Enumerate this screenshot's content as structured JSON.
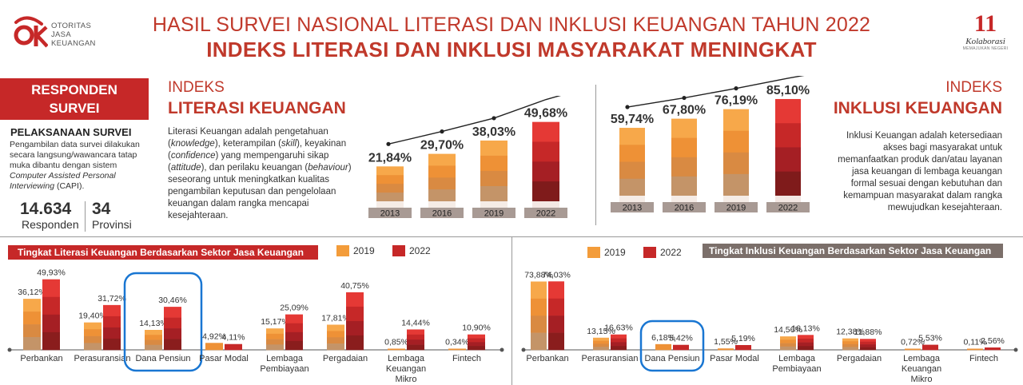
{
  "header": {
    "logo": {
      "mark": "OJK",
      "lines": [
        "OTORITAS",
        "JASA",
        "KEUANGAN"
      ]
    },
    "title": "HASIL SURVEI NASIONAL LITERASI DAN INKLUSI KEUANGAN TAHUN 2022",
    "subtitle": "INDEKS LITERASI DAN INKLUSI MASYARAKAT MENINGKAT",
    "anniversary": {
      "number": "11",
      "word": "Kolaborasi",
      "tagline": "MEMAJUKAN NEGERI"
    }
  },
  "responden": {
    "box_line1": "RESPONDEN",
    "box_line2": "SURVEI",
    "heading": "PELAKSANAAN SURVEI",
    "text1": "Pengambilan data survei dilakukan secara langsung/wawancara tatap muka dibantu dengan sistem",
    "text_italic": "Computer Assisted Personal Interviewing",
    "text2": " (CAPI).",
    "count_value": "14.634",
    "count_label": "Responden",
    "prov_value": "34",
    "prov_label": "Provinsi"
  },
  "literasi": {
    "label_light": "INDEKS",
    "label_bold": "LITERASI KEUANGAN",
    "desc": [
      {
        "t": "Literasi Keuangan adalah pengetahuan ("
      },
      {
        "t": "knowledge",
        "i": true
      },
      {
        "t": "), keterampilan ("
      },
      {
        "t": "skill",
        "i": true
      },
      {
        "t": "), keyakinan ("
      },
      {
        "t": "confidence",
        "i": true
      },
      {
        "t": ") yang mempengaruhi sikap ("
      },
      {
        "t": "attitude",
        "i": true
      },
      {
        "t": "), dan perilaku keuangan ("
      },
      {
        "t": "behaviour",
        "i": true
      },
      {
        "t": ") seseorang untuk meningkatkan kualitas pengambilan keputusan dan pengelolaan keuangan dalam rangka mencapai kesejahteraan."
      }
    ]
  },
  "inklusi": {
    "label_light": "INDEKS",
    "label_bold": "INKLUSI KEUANGAN",
    "desc": "Inklusi Keuangan adalah ketersediaan akses bagi masyarakat untuk memanfaatkan produk dan/atau layanan jasa keuangan di lembaga keuangan formal sesuai dengan kebutuhan dan kemampuan masyarakat dalam rangka mewujudkan kesejahteraan."
  },
  "legend": {
    "y2019": "2019",
    "y2022": "2022"
  },
  "sector_titles": {
    "literasi": "Tingkat Literasi Keuangan Berdasarkan Sektor Jasa Keuangan",
    "inklusi": "Tingkat Inklusi Keuangan Berdasarkan Sektor Jasa Keuangan"
  },
  "colors": {
    "red": "#c62828",
    "orange": "#f39c3a",
    "grey": "#7b6f6a",
    "year_box": "#a89a94"
  },
  "chart_data": [
    {
      "type": "bar",
      "title": "INDEKS LITERASI KEUANGAN",
      "categories": [
        "2013",
        "2016",
        "2019",
        "2022"
      ],
      "values": [
        21.84,
        29.7,
        38.03,
        49.68
      ],
      "labels": [
        "21,84%",
        "29,70%",
        "38,03%",
        "49,68%"
      ],
      "ylim": [
        0,
        55
      ],
      "trend_line": true
    },
    {
      "type": "bar",
      "title": "INDEKS INKLUSI KEUANGAN",
      "categories": [
        "2013",
        "2016",
        "2019",
        "2022"
      ],
      "values": [
        59.74,
        67.8,
        76.19,
        85.1
      ],
      "labels": [
        "59,74%",
        "67,80%",
        "76,19%",
        "85,10%"
      ],
      "ylim": [
        0,
        90
      ],
      "trend_line": true
    },
    {
      "type": "bar",
      "title": "Tingkat Literasi Keuangan Berdasarkan Sektor Jasa Keuangan",
      "categories": [
        "Perbankan",
        "Perasuransian",
        "Dana Pensiun",
        "Pasar Modal",
        "Lembaga Pembiayaan",
        "Pergadaian",
        "Lembaga Keuangan Mikro",
        "Fintech"
      ],
      "category_lines": [
        [
          "Perbankan"
        ],
        [
          "Perasuransian"
        ],
        [
          "Dana Pensiun"
        ],
        [
          "Pasar Modal"
        ],
        [
          "Lembaga",
          "Pembiayaan"
        ],
        [
          "Pergadaian"
        ],
        [
          "Lembaga",
          "Keuangan",
          "Mikro"
        ],
        [
          "Fintech"
        ]
      ],
      "series": [
        {
          "name": "2019",
          "values": [
            36.12,
            19.4,
            14.13,
            4.92,
            15.17,
            17.81,
            0.85,
            0.34
          ],
          "labels": [
            "36,12%",
            "19,40%",
            "14,13%",
            "4,92%",
            "15,17%",
            "17,81%",
            "0,85%",
            "0,34%"
          ]
        },
        {
          "name": "2022",
          "values": [
            49.93,
            31.72,
            30.46,
            4.11,
            25.09,
            40.75,
            14.44,
            10.9
          ],
          "labels": [
            "49,93%",
            "31,72%",
            "30,46%",
            "4,11%",
            "25,09%",
            "40,75%",
            "14,44%",
            "10,90%"
          ]
        }
      ],
      "ylim": [
        0,
        52
      ],
      "highlight": "Dana Pensiun"
    },
    {
      "type": "bar",
      "title": "Tingkat Inklusi Keuangan Berdasarkan Sektor Jasa Keuangan",
      "categories": [
        "Perbankan",
        "Perasuransian",
        "Dana Pensiun",
        "Pasar Modal",
        "Lembaga Pembiayaan",
        "Pergadaian",
        "Lembaga Keuangan Mikro",
        "Fintech"
      ],
      "category_lines": [
        [
          "Perbankan"
        ],
        [
          "Perasuransian"
        ],
        [
          "Dana Pensiun"
        ],
        [
          "Pasar Modal"
        ],
        [
          "Lembaga",
          "Pembiayaan"
        ],
        [
          "Pergadaian"
        ],
        [
          "Lembaga",
          "Keuangan",
          "Mikro"
        ],
        [
          "Fintech"
        ]
      ],
      "series": [
        {
          "name": "2019",
          "values": [
            73.88,
            13.15,
            6.18,
            1.55,
            14.56,
            12.38,
            0.72,
            0.11
          ],
          "labels": [
            "73,88%",
            "13,15%",
            "6,18%",
            "1,55%",
            "14,56%",
            "12,38%",
            "0,72%",
            "0,11%"
          ]
        },
        {
          "name": "2022",
          "values": [
            74.03,
            16.63,
            5.42,
            5.19,
            16.13,
            11.88,
            5.53,
            2.56
          ],
          "labels": [
            "74,03%",
            "16,63%",
            "5,42%",
            "5,19%",
            "16,13%",
            "11,88%",
            "5,53%",
            "2,56%"
          ]
        }
      ],
      "ylim": [
        0,
        76
      ],
      "highlight": "Dana Pensiun"
    }
  ]
}
